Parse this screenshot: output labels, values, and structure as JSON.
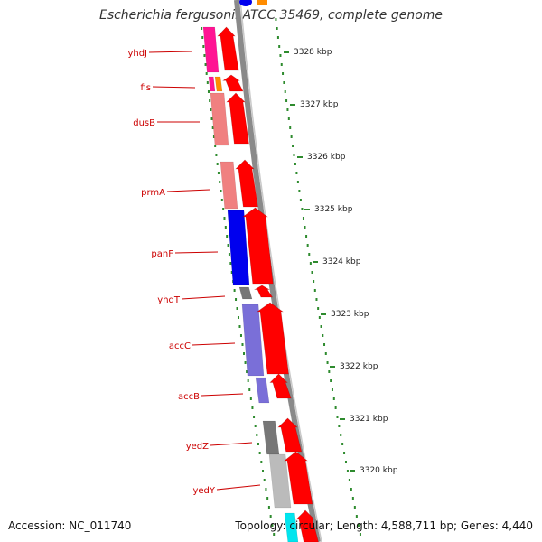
{
  "title": "Escherichia fergusonii ATCC 35469, complete genome",
  "footer": {
    "accession": "Accession: NC_011740",
    "stats": "Topology: circular; Length: 4,588,711 bp; Genes: 4,440"
  },
  "genes": [
    {
      "name": "yhdJ"
    },
    {
      "name": "fis"
    },
    {
      "name": "dusB"
    },
    {
      "name": "prmA"
    },
    {
      "name": "panF"
    },
    {
      "name": "yhdT"
    },
    {
      "name": "accC"
    },
    {
      "name": "accB"
    },
    {
      "name": "yedZ"
    },
    {
      "name": "yedY"
    }
  ],
  "scale_ticks": [
    "3328 kbp",
    "3327 kbp",
    "3326 kbp",
    "3325 kbp",
    "3324 kbp",
    "3323 kbp",
    "3322 kbp",
    "3321 kbp",
    "3320 kbp"
  ],
  "colors": {
    "label_red": "#cc0000",
    "cds_arrow": "#ff0000",
    "backbone": "#8a8a8a",
    "dotted_ring": "#2e8b2e",
    "magenta": "#ff1493",
    "orange": "#ff8c00",
    "salmon": "#f08080",
    "blue": "#0000ee",
    "slate": "#7a6fd8",
    "grey_dark": "#777777",
    "grey_light": "#bbbbbb",
    "cyan": "#00e5ee"
  }
}
